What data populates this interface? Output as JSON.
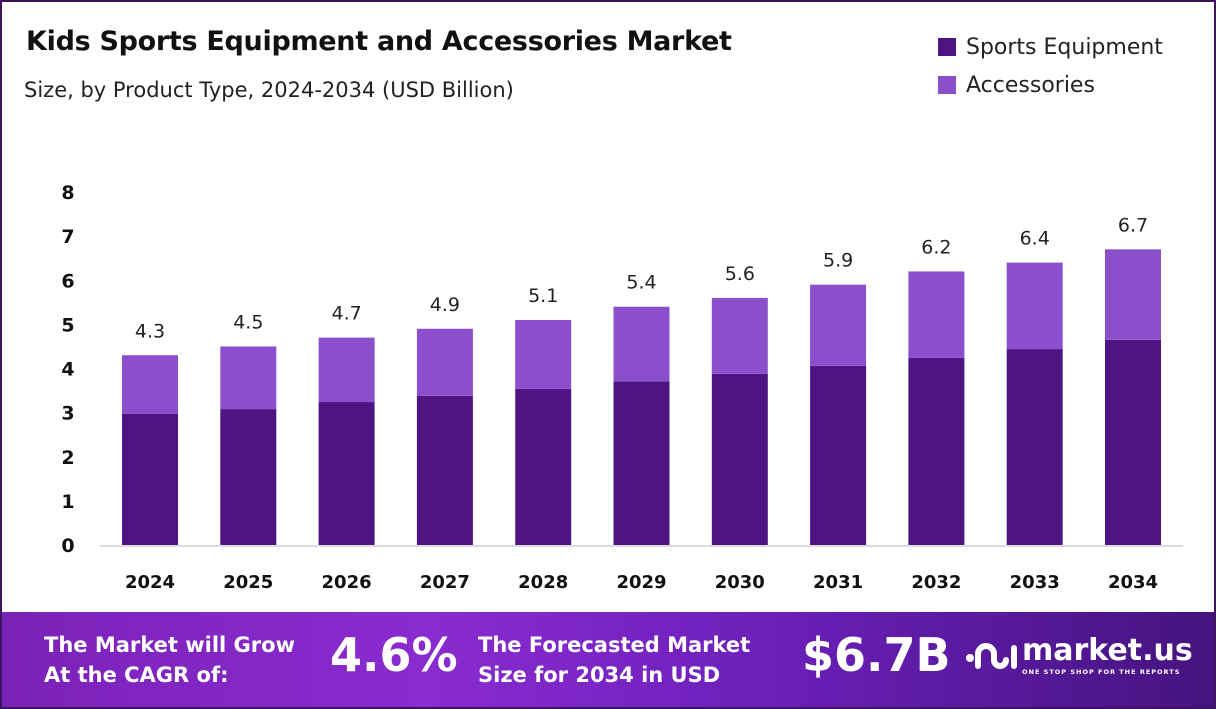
{
  "chart_data": {
    "type": "bar",
    "stacked": true,
    "title": "Kids Sports Equipment and Accessories Market",
    "subtitle": "Size, by Product Type, 2024-2034 (USD Billion)",
    "categories": [
      "2024",
      "2025",
      "2026",
      "2027",
      "2028",
      "2029",
      "2030",
      "2031",
      "2032",
      "2033",
      "2034"
    ],
    "series": [
      {
        "name": "Sports Equipment",
        "color": "#4e1582",
        "values": [
          2.97,
          3.08,
          3.24,
          3.38,
          3.54,
          3.71,
          3.88,
          4.06,
          4.24,
          4.44,
          4.65
        ]
      },
      {
        "name": "Accessories",
        "color": "#8b4fcc",
        "values": [
          1.33,
          1.42,
          1.46,
          1.52,
          1.56,
          1.69,
          1.72,
          1.84,
          1.96,
          1.96,
          2.05
        ]
      }
    ],
    "totals_labels": [
      "4.3",
      "4.5",
      "4.7",
      "4.9",
      "5.1",
      "5.4",
      "5.6",
      "5.9",
      "6.2",
      "6.4",
      "6.7"
    ],
    "yticks": [
      "0",
      "1",
      "2",
      "3",
      "4",
      "5",
      "6",
      "7",
      "8"
    ],
    "ylim": [
      0,
      8
    ],
    "grid": false,
    "legend_position": "top-right",
    "xlabel": "",
    "ylabel": ""
  },
  "banner": {
    "cagr_label_1": "The Market will Grow",
    "cagr_label_2": "At the CAGR of:",
    "cagr_value": "4.6%",
    "forecast_label_1": "The Forecasted Market",
    "forecast_label_2": "Size for 2034 in USD",
    "forecast_value": "$6.7B",
    "logo_name": "market.us",
    "logo_tagline": "ONE STOP SHOP FOR THE REPORTS"
  }
}
